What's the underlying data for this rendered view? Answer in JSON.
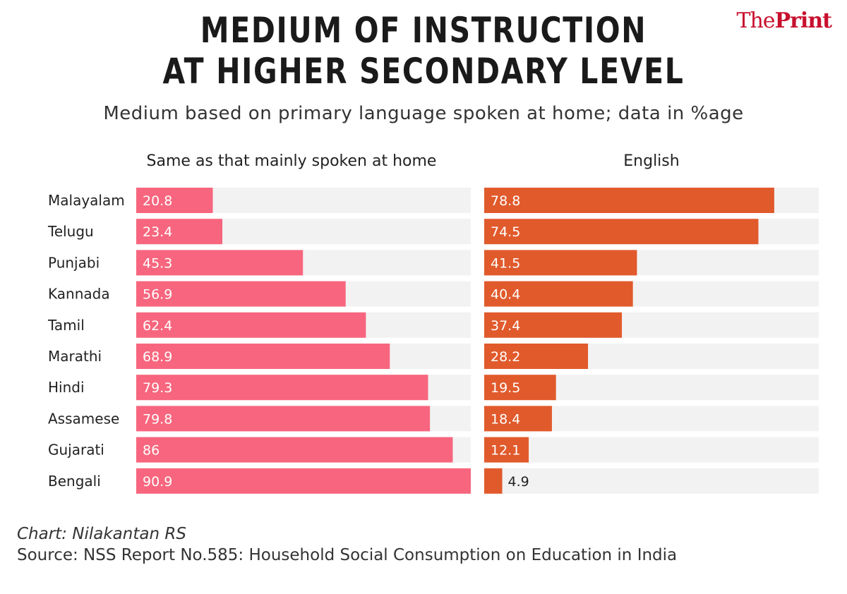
{
  "brand": {
    "part1": "The",
    "part2": "Print"
  },
  "chart_data": {
    "type": "bar",
    "orientation": "horizontal",
    "title_lines": [
      "MEDIUM OF INSTRUCTION",
      "AT HIGHER SECONDARY LEVEL"
    ],
    "subtitle": "Medium based on primary language spoken at home; data in %age",
    "categories": [
      "Malayalam",
      "Telugu",
      "Punjabi",
      "Kannada",
      "Tamil",
      "Marathi",
      "Hindi",
      "Assamese",
      "Gujarati",
      "Bengali"
    ],
    "series": [
      {
        "name": "Same as that mainly spoken at home",
        "color": "#f7667e",
        "values": [
          20.8,
          23.4,
          45.3,
          56.9,
          62.4,
          68.9,
          79.3,
          79.8,
          86,
          90.9
        ]
      },
      {
        "name": "English",
        "color": "#e15a2c",
        "values": [
          78.8,
          74.5,
          41.5,
          40.4,
          37.4,
          28.2,
          19.5,
          18.4,
          12.1,
          4.9
        ]
      }
    ],
    "track_color": "#f2f2f2"
  },
  "footer": {
    "credit": "Chart: Nilakantan RS",
    "source": "Source: NSS Report No.585: Household Social Consumption on Education in India"
  }
}
